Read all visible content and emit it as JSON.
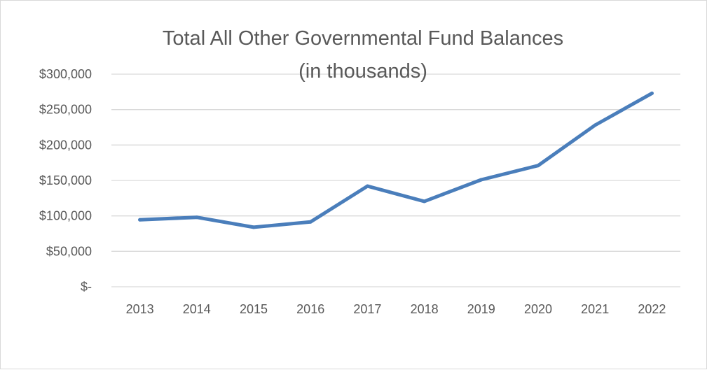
{
  "chart_data": {
    "type": "line",
    "title": "Total All Other Governmental Fund Balances",
    "subtitle": "(in thousands)",
    "xlabel": "",
    "ylabel": "",
    "categories": [
      "2013",
      "2014",
      "2015",
      "2016",
      "2017",
      "2018",
      "2019",
      "2020",
      "2021",
      "2022"
    ],
    "series": [
      {
        "values": [
          94500,
          98000,
          84000,
          91500,
          142000,
          120500,
          151000,
          171000,
          228000,
          273000
        ],
        "color": "#4a7ebb"
      }
    ],
    "ylim": [
      0,
      300000
    ],
    "y_ticks": [
      0,
      50000,
      100000,
      150000,
      200000,
      250000,
      300000
    ],
    "y_tick_labels": [
      "$-",
      "$50,000",
      "$100,000",
      "$150,000",
      "$200,000",
      "$250,000",
      "$300,000"
    ],
    "grid": true,
    "legend": "none",
    "colors": {
      "line": "#4a7ebb",
      "grid": "#d9d9d9",
      "text": "#595959"
    }
  }
}
